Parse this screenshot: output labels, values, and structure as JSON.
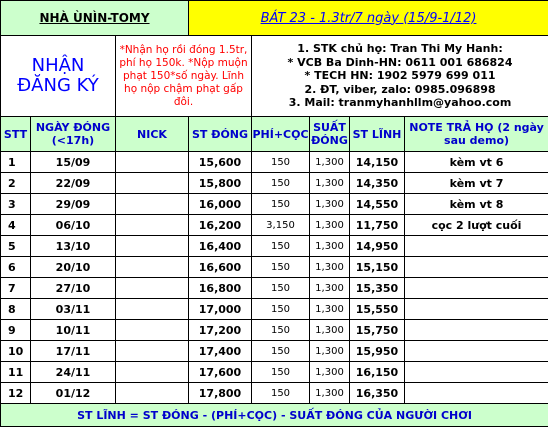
{
  "header": {
    "left_title": "NHÀ ÙNÌN-TOMY",
    "right_title": "BÁT 23 -  1.3tr/7 ngày (15/9-1/12)"
  },
  "info": {
    "register_line1": "NHẬN",
    "register_line2": "ĐĂNG KÝ",
    "rules": "*Nhận họ rồi đóng 1.5tr, phí họ 150k. *Nộp muộn phạt 150*số ngày. Lĩnh họ nộp chậm phạt gấp đôi.",
    "contact": [
      "1. STK chủ họ: Tran Thi My Hanh:",
      "* VCB Ba Dinh-HN: 0611 001 686824",
      "* TECH HN: 1902 5979 699 011",
      "2. ĐT, viber, zalo: 0985.096898",
      "3. Mail: tranmyhanhllm@yahoo.com"
    ]
  },
  "columns": {
    "stt": "STT",
    "date": "NGÀY ĐÓNG (<17h)",
    "nick": "NICK",
    "st_dong": "ST ĐÓNG",
    "phi_coc": "PHÍ+CỌC",
    "suat_dong": "SUẤT ĐÓNG",
    "st_linh": "ST LĨNH",
    "note": "NOTE TRẢ HỌ (2 ngày sau demo)"
  },
  "rows": [
    {
      "stt": "1",
      "date": "15/09",
      "nick": "",
      "st_dong": "15,600",
      "phi_coc": "150",
      "suat_dong": "1,300",
      "st_linh": "14,150",
      "note": "kèm vt 6"
    },
    {
      "stt": "2",
      "date": "22/09",
      "nick": "",
      "st_dong": "15,800",
      "phi_coc": "150",
      "suat_dong": "1,300",
      "st_linh": "14,350",
      "note": "kèm vt 7"
    },
    {
      "stt": "3",
      "date": "29/09",
      "nick": "",
      "st_dong": "16,000",
      "phi_coc": "150",
      "suat_dong": "1,300",
      "st_linh": "14,550",
      "note": "kèm vt 8"
    },
    {
      "stt": "4",
      "date": "06/10",
      "nick": "",
      "st_dong": "16,200",
      "phi_coc": "3,150",
      "suat_dong": "1,300",
      "st_linh": "11,750",
      "note": "cọc 2 lượt cuối"
    },
    {
      "stt": "5",
      "date": "13/10",
      "nick": "",
      "st_dong": "16,400",
      "phi_coc": "150",
      "suat_dong": "1,300",
      "st_linh": "14,950",
      "note": ""
    },
    {
      "stt": "6",
      "date": "20/10",
      "nick": "",
      "st_dong": "16,600",
      "phi_coc": "150",
      "suat_dong": "1,300",
      "st_linh": "15,150",
      "note": ""
    },
    {
      "stt": "7",
      "date": "27/10",
      "nick": "",
      "st_dong": "16,800",
      "phi_coc": "150",
      "suat_dong": "1,300",
      "st_linh": "15,350",
      "note": ""
    },
    {
      "stt": "8",
      "date": "03/11",
      "nick": "",
      "st_dong": "17,000",
      "phi_coc": "150",
      "suat_dong": "1,300",
      "st_linh": "15,550",
      "note": ""
    },
    {
      "stt": "9",
      "date": "10/11",
      "nick": "",
      "st_dong": "17,200",
      "phi_coc": "150",
      "suat_dong": "1,300",
      "st_linh": "15,750",
      "note": ""
    },
    {
      "stt": "10",
      "date": "17/11",
      "nick": "",
      "st_dong": "17,400",
      "phi_coc": "150",
      "suat_dong": "1,300",
      "st_linh": "15,950",
      "note": ""
    },
    {
      "stt": "11",
      "date": "24/11",
      "nick": "",
      "st_dong": "17,600",
      "phi_coc": "150",
      "suat_dong": "1,300",
      "st_linh": "16,150",
      "note": ""
    },
    {
      "stt": "12",
      "date": "01/12",
      "nick": "",
      "st_dong": "17,800",
      "phi_coc": "150",
      "suat_dong": "1,300",
      "st_linh": "16,350",
      "note": ""
    }
  ],
  "footer": "ST LĨNH = ST ĐÓNG - (PHÍ+CỌC) - SUẤT ĐÓNG CỦA NGƯỜI CHƠI",
  "colors": {
    "header_green": "#ccffcc",
    "title_yellow": "#ffff00",
    "accent_blue": "#0000ff",
    "rule_red": "#ff0000"
  }
}
